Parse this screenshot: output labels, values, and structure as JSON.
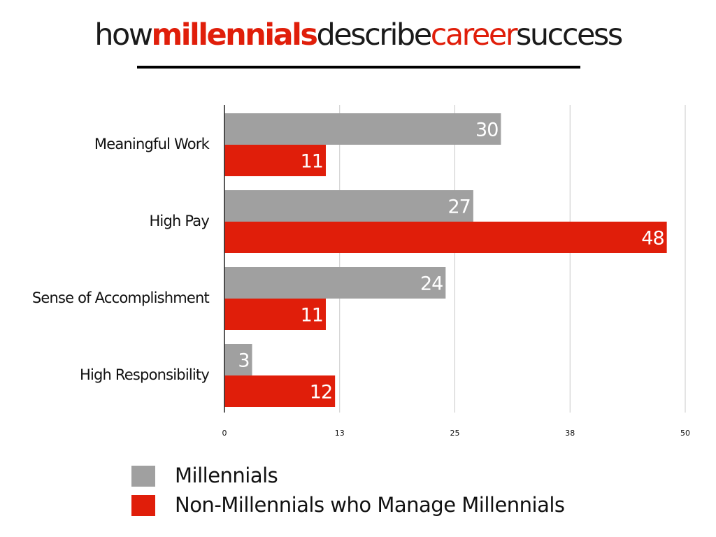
{
  "title": {
    "parts": [
      {
        "text": "how",
        "color": "#1a1a1a",
        "bold": false
      },
      {
        "text": "millennials",
        "color": "#e01e0a",
        "bold": true
      },
      {
        "text": "describe",
        "color": "#1a1a1a",
        "bold": false
      },
      {
        "text": "career",
        "color": "#e01e0a",
        "bold": false
      },
      {
        "text": "success",
        "color": "#1a1a1a",
        "bold": false
      }
    ]
  },
  "legend": {
    "items": [
      {
        "label": "Millennials",
        "color": "#a0a0a0"
      },
      {
        "label": "Non-Millennials who Manage Millennials",
        "color": "#e01e0a"
      }
    ]
  },
  "chart_data": {
    "type": "bar",
    "orientation": "horizontal",
    "title": "howmillennialsdescribecareersuccess",
    "categories": [
      "Meaningful Work",
      "High Pay",
      "Sense of Accomplishment",
      "High Responsibility"
    ],
    "series": [
      {
        "name": "Millennials",
        "color": "#a0a0a0",
        "values": [
          30,
          27,
          24,
          3
        ]
      },
      {
        "name": "Non-Millennials who Manage Millennials",
        "color": "#e01e0a",
        "values": [
          11,
          48,
          11,
          12
        ]
      }
    ],
    "xlim": [
      0,
      50
    ],
    "xticks": [
      "0",
      "13",
      "25",
      "38",
      "50"
    ],
    "grid": true,
    "legend_position": "bottom-left",
    "data_labels": true
  }
}
